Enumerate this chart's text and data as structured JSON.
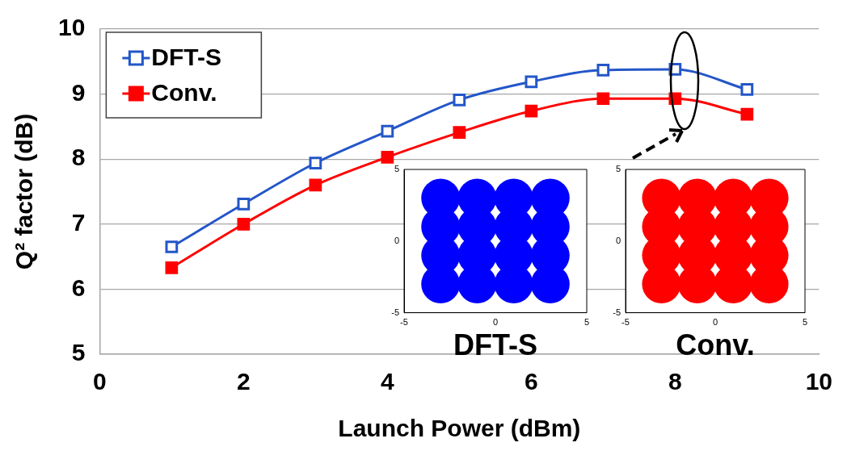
{
  "chart_data": [
    {
      "type": "line",
      "xlabel": "Launch Power (dBm)",
      "ylabel": "Q² factor (dB)",
      "x": [
        1,
        2,
        3,
        4,
        5,
        6,
        7,
        8,
        9
      ],
      "series": [
        {
          "name": "DFT-S",
          "color": "#2356c8",
          "values": [
            6.65,
            7.31,
            7.94,
            8.43,
            8.91,
            9.19,
            9.37,
            9.38,
            9.07
          ]
        },
        {
          "name": "Conv.",
          "color": "#ff0000",
          "values": [
            6.33,
            7.0,
            7.6,
            8.03,
            8.41,
            8.74,
            8.93,
            8.93,
            8.69
          ]
        }
      ],
      "xlim": [
        0,
        10
      ],
      "xticks": [
        0,
        2,
        4,
        6,
        8,
        10
      ],
      "ylim": [
        5,
        10
      ],
      "yticks": [
        5,
        6,
        7,
        8,
        9,
        10
      ],
      "grid": "y",
      "legend": "top left",
      "marker": "square",
      "line_style": "solid"
    },
    {
      "type": "scatter",
      "xlabel": "DFT-S",
      "x": [
        -3,
        -1,
        1,
        3,
        -3,
        -1,
        1,
        3,
        -3,
        -1,
        1,
        3,
        -3,
        -1,
        1,
        3
      ],
      "values": [
        3,
        3,
        3,
        3,
        1,
        1,
        1,
        1,
        -1,
        -1,
        -1,
        -1,
        -3,
        -3,
        -3,
        -3
      ],
      "color": "#0000ff",
      "xlim": [
        -5,
        5
      ],
      "xticks": [
        -5,
        0,
        5
      ],
      "ylim": [
        -5,
        5
      ],
      "yticks": [
        -5,
        0,
        5
      ],
      "grid": false,
      "marker": "circle"
    },
    {
      "type": "scatter",
      "xlabel": "Conv.",
      "x": [
        -3,
        -1,
        1,
        3,
        -3,
        -1,
        1,
        3,
        -3,
        -1,
        1,
        3,
        -3,
        -1,
        1,
        3
      ],
      "values": [
        3,
        3,
        3,
        3,
        1,
        1,
        1,
        1,
        -1,
        -1,
        -1,
        -1,
        -3,
        -3,
        -3,
        -3
      ],
      "color": "#ff0000",
      "xlim": [
        -5,
        5
      ],
      "xticks": [
        -5,
        0,
        5
      ],
      "ylim": [
        -5,
        5
      ],
      "yticks": [
        -5,
        0,
        5
      ],
      "grid": false,
      "marker": "circle"
    }
  ]
}
